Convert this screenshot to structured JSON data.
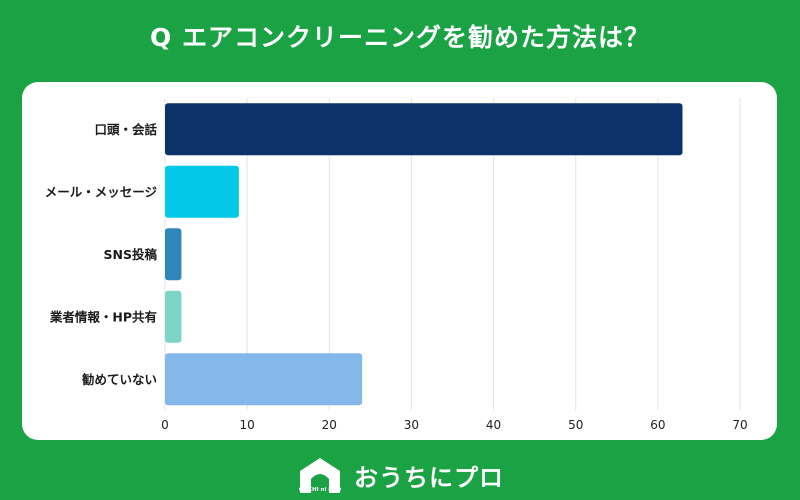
{
  "header": {
    "title": "Q エアコンクリーニングを勧めた方法は？"
  },
  "brand": {
    "name": "おうちにプロ",
    "logo_caption": "OUCHI ni PRO"
  },
  "chart_data": {
    "type": "bar",
    "orientation": "horizontal",
    "title": "",
    "xlabel": "",
    "ylabel": "",
    "categories": [
      "口頭・会話",
      "メール・メッセージ",
      "SNS投稿",
      "業者情報・HP共有",
      "勧めていない"
    ],
    "values": [
      63,
      9,
      2,
      2,
      24
    ],
    "colors": [
      "#0d3269",
      "#04c8e8",
      "#2e86b9",
      "#7dd5c8",
      "#84b8eb"
    ],
    "xlim": [
      0,
      70
    ],
    "xticks": [
      0,
      10,
      20,
      30,
      40,
      50,
      60,
      70
    ],
    "grid": true,
    "legend": "none"
  }
}
